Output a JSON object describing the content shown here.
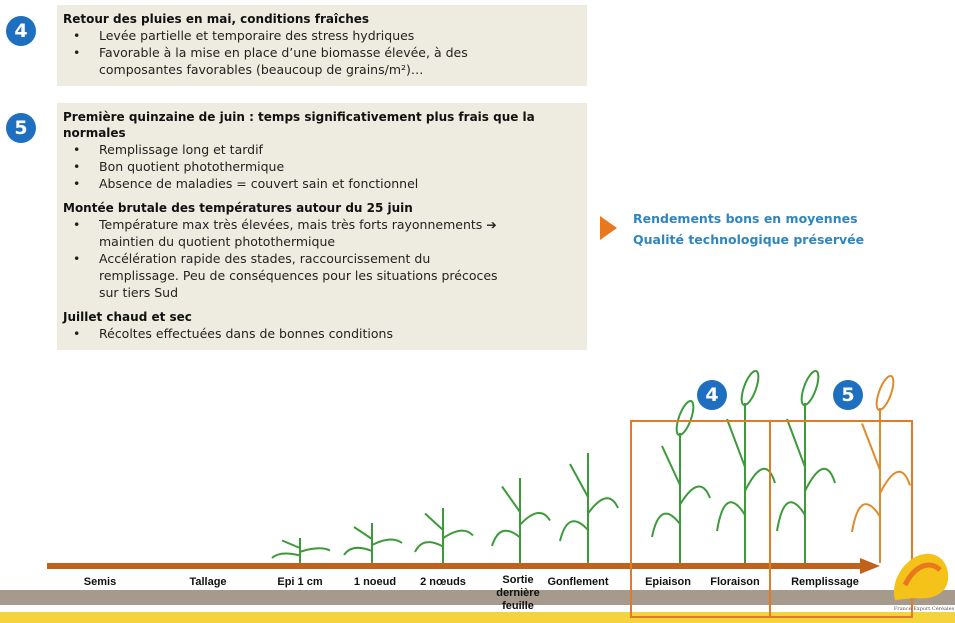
{
  "sections": [
    {
      "number": "4",
      "groups": [
        {
          "title": "Retour des pluies en mai, conditions fraîches",
          "bullets": [
            "Levée partielle et temporaire des stress hydriques",
            "Favorable à la mise en place d’une biomasse élevée, à des composantes favorables (beaucoup de grains/m²)…"
          ]
        }
      ]
    },
    {
      "number": "5",
      "groups": [
        {
          "title": "Première quinzaine de juin : temps significativement plus frais que la normales",
          "bullets": [
            "Remplissage long et tardif",
            "Bon quotient photothermique",
            "Absence de maladies = couvert sain et fonctionnel"
          ]
        },
        {
          "title": "Montée brutale des températures autour du 25 juin",
          "bullets": [
            "Température max très élevées, mais très forts rayonnements ➔ maintien du quotient photothermique",
            "Accélération rapide des stades, raccourcissement du remplissage. Peu de conséquences pour les situations précoces sur tiers Sud"
          ]
        },
        {
          "title": "Juillet chaud et sec",
          "bullets": [
            "Récoltes effectuées dans de bonnes conditions"
          ]
        }
      ]
    }
  ],
  "conclusion": [
    "Rendements bons en moyennes",
    "Qualité technologique préservée"
  ],
  "stage_markers": [
    "4",
    "5"
  ],
  "stages": [
    "Semis",
    "Tallage",
    "Epi 1 cm",
    "1 noeud",
    "2 nœuds",
    "Sortie dernière feuille",
    "Gonflement",
    "Epiaison",
    "Floraison",
    "Remplissage"
  ],
  "logo": "France Export Céréales"
}
